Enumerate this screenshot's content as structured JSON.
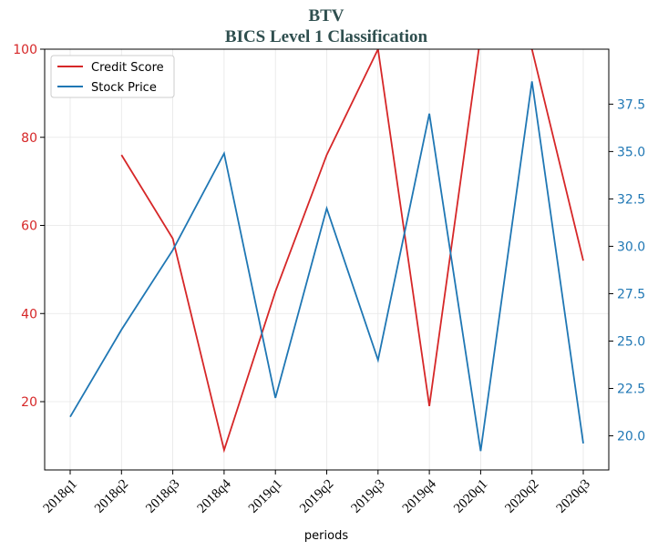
{
  "chart_data": {
    "type": "line",
    "title": "BTV",
    "subtitle": "BICS Level 1 Classification",
    "xlabel": "periods",
    "categories": [
      "2018q1",
      "2018q2",
      "2018q3",
      "2018q4",
      "2019q1",
      "2019q2",
      "2019q3",
      "2019q4",
      "2020q1",
      "2020q2",
      "2020q3"
    ],
    "grid": true,
    "legend_position": "top-left",
    "left_axis": {
      "ylim": [
        4.5,
        100
      ],
      "ticks": [
        20,
        40,
        60,
        80,
        100
      ],
      "tick_labels": [
        "20",
        "40",
        "60",
        "80",
        "100"
      ],
      "color": "#d62728"
    },
    "right_axis": {
      "ylim": [
        18.2,
        40.4
      ],
      "ticks": [
        20.0,
        22.5,
        25.0,
        27.5,
        30.0,
        32.5,
        35.0,
        37.5
      ],
      "tick_labels": [
        "20.0",
        "22.5",
        "25.0",
        "27.5",
        "30.0",
        "32.5",
        "35.0",
        "37.5"
      ],
      "color": "#1f77b4"
    },
    "series": [
      {
        "name": "Credit Score",
        "axis": "left",
        "color": "#d62728",
        "values": [
          null,
          76,
          57,
          9,
          45,
          76,
          100,
          19,
          103,
          100,
          52
        ]
      },
      {
        "name": "Stock Price",
        "axis": "right",
        "color": "#1f77b4",
        "values": [
          21.0,
          25.6,
          29.8,
          34.9,
          22.0,
          32.0,
          24.0,
          37.0,
          19.2,
          38.7,
          19.6
        ]
      }
    ]
  }
}
